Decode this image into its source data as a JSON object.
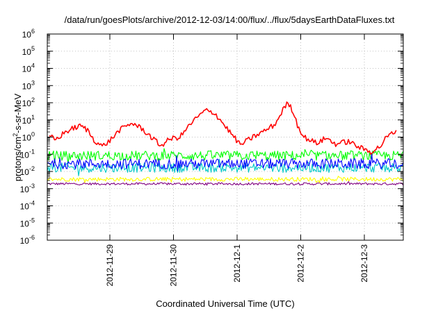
{
  "chart_data": {
    "type": "line",
    "title": "/data/run/goesPlots/archive/2012-12-03/14:00/flux/../flux/5daysEarthDataFluxes.txt",
    "xlabel": "Coordinated Universal Time (UTC)",
    "ylabel": {
      "prefix": "protons/cm",
      "superscript": "2",
      "suffix": "-s-sr-MeV"
    },
    "y_scale": "log",
    "ylim_exponents": [
      -6,
      6
    ],
    "y_tick_base": "10",
    "y_tick_exponents": [
      "-6",
      "-5",
      "-4",
      "-3",
      "-2",
      "-1",
      "0",
      "1",
      "2",
      "3",
      "4",
      "5",
      "6"
    ],
    "x_ticks": [
      "2012-11-29",
      "2012-11-30",
      "2012-12-1",
      "2012-12-2",
      "2012-12-3"
    ],
    "xlim_days_relative_to_first_tick": [
      -0.95,
      1.0
    ],
    "grid": true,
    "series": [
      {
        "color": "#800080",
        "style": "noise",
        "level_exp": -2.72,
        "spread_exp": 0.07
      },
      {
        "color": "#ffff00",
        "style": "noise",
        "level_exp": -2.45,
        "spread_exp": 0.12
      },
      {
        "color": "#00c8c8",
        "style": "noise",
        "level_exp": -1.78,
        "spread_exp": 0.28
      },
      {
        "color": "#00ff00",
        "style": "noise",
        "level_exp": -1.08,
        "spread_exp": 0.28
      },
      {
        "color": "#0000ff",
        "style": "noise",
        "level_exp": -1.55,
        "spread_exp": 0.3
      },
      {
        "color": "#ff0000",
        "style": "line",
        "points": [
          [
            -0.95,
            0.05
          ],
          [
            -0.85,
            -0.15
          ],
          [
            -0.7,
            0.3
          ],
          [
            -0.55,
            0.55
          ],
          [
            -0.45,
            0.65
          ],
          [
            -0.35,
            0.4
          ],
          [
            -0.25,
            -0.15
          ],
          [
            -0.12,
            -0.55
          ],
          [
            0.0,
            -0.2
          ],
          [
            0.15,
            0.4
          ],
          [
            0.35,
            0.82
          ],
          [
            0.5,
            0.5
          ],
          [
            0.65,
            0.0
          ],
          [
            0.8,
            -0.5
          ],
          [
            0.95,
            -0.1
          ],
          [
            1.1,
            0.0
          ],
          [
            1.3,
            0.9
          ],
          [
            1.5,
            1.55
          ],
          [
            1.65,
            1.4
          ],
          [
            1.8,
            0.7
          ],
          [
            1.95,
            0.0
          ],
          [
            2.05,
            -0.45
          ],
          [
            2.25,
            0.0
          ],
          [
            2.45,
            0.4
          ],
          [
            2.6,
            0.75
          ],
          [
            2.72,
            1.6
          ],
          [
            2.8,
            2.0
          ],
          [
            2.88,
            1.5
          ],
          [
            2.95,
            0.7
          ],
          [
            3.05,
            0.0
          ],
          [
            3.25,
            -0.35
          ],
          [
            3.4,
            -0.05
          ],
          [
            3.55,
            -0.4
          ],
          [
            3.75,
            -0.25
          ],
          [
            3.95,
            -0.65
          ],
          [
            4.1,
            -0.85
          ],
          [
            4.25,
            -0.55
          ],
          [
            4.35,
            0.0
          ],
          [
            4.45,
            0.25
          ],
          [
            4.5,
            0.4
          ]
        ]
      }
    ]
  }
}
